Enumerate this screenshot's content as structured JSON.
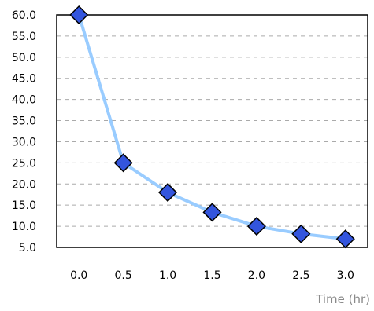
{
  "chart_data": {
    "type": "line",
    "x": [
      0.0,
      0.5,
      1.0,
      1.5,
      2.0,
      2.5,
      3.0
    ],
    "x_tick_labels": [
      "0.0",
      "0.5",
      "1.0",
      "1.5",
      "2.0",
      "2.5",
      "3.0"
    ],
    "series": [
      {
        "values": [
          60.0,
          25.0,
          18.0,
          13.3,
          10.0,
          8.2,
          7.0
        ]
      }
    ],
    "y_tick_labels": [
      "60.0",
      "55.0",
      "50.0",
      "45.0",
      "40.0",
      "35.0",
      "30.0",
      "25.0",
      "20.0",
      "15.0",
      "10.0",
      "5.0"
    ],
    "y_ticks": [
      60,
      55,
      50,
      45,
      40,
      35,
      30,
      25,
      20,
      15,
      10,
      5
    ],
    "ylim": [
      5,
      60
    ],
    "xlabel": "Time (hr)",
    "ylabel": "",
    "title": "",
    "grid": true,
    "grid_style": "dashed horizontal",
    "legend": "none",
    "colors": {
      "line": "#99ccff",
      "marker_fill": "#3355dd",
      "marker_stroke": "#000000",
      "grid": "#aaaaaa",
      "axis": "#000000"
    },
    "marker": "diamond"
  }
}
